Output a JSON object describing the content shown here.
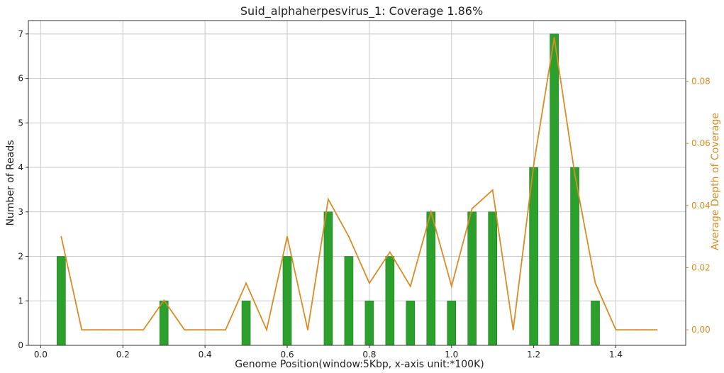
{
  "chart_data": {
    "type": "bar",
    "title": "Suid_alphaherpesvirus_1: Coverage 1.86%",
    "xlabel": "Genome Position(window:5Kbp, x-axis unit:*100K)",
    "ylabel": "Number of Reads",
    "y2label": "Average Depth of Coverage",
    "xlim": [
      -0.03,
      1.57
    ],
    "ylim": [
      0,
      7.3
    ],
    "y2lim": [
      -0.005,
      0.0995
    ],
    "x_ticks": [
      "0.0",
      "0.2",
      "0.4",
      "0.6",
      "0.8",
      "1.0",
      "1.2",
      "1.4"
    ],
    "y_ticks": [
      "0",
      "1",
      "2",
      "3",
      "4",
      "5",
      "6",
      "7"
    ],
    "y2_ticks": [
      "0.00",
      "0.02",
      "0.04",
      "0.06",
      "0.08"
    ],
    "grid": true,
    "bars": {
      "name": "Number of Reads",
      "color": "#2ca02c",
      "x": [
        0.05,
        0.3,
        0.5,
        0.6,
        0.7,
        0.75,
        0.8,
        0.85,
        0.9,
        0.95,
        1.0,
        1.05,
        1.1,
        1.2,
        1.25,
        1.3,
        1.35
      ],
      "values": [
        2,
        1,
        1,
        2,
        3,
        2,
        1,
        2,
        1,
        3,
        1,
        3,
        3,
        4,
        7,
        4,
        1
      ]
    },
    "line": {
      "name": "Average Depth of Coverage",
      "color": "#d98c24",
      "x": [
        0.05,
        0.1,
        0.15,
        0.2,
        0.25,
        0.3,
        0.35,
        0.4,
        0.45,
        0.5,
        0.55,
        0.6,
        0.65,
        0.7,
        0.75,
        0.8,
        0.85,
        0.9,
        0.95,
        1.0,
        1.05,
        1.1,
        1.15,
        1.2,
        1.25,
        1.3,
        1.35,
        1.4,
        1.45,
        1.5
      ],
      "values": [
        0.03,
        0.0,
        0.0,
        0.0,
        0.0,
        0.0095,
        0.0,
        0.0,
        0.0,
        0.015,
        0.0,
        0.03,
        0.0,
        0.042,
        0.03,
        0.015,
        0.025,
        0.014,
        0.038,
        0.014,
        0.039,
        0.045,
        0.0,
        0.053,
        0.094,
        0.05,
        0.015,
        0.0,
        0.0,
        0.0
      ]
    },
    "colors": {
      "bar_fill": "#2ca02c",
      "bar_edge": "#1e7a1e",
      "line": "#d98c24",
      "y2_text": "#d98c24",
      "grid": "#c9c9c9",
      "axis": "#333333"
    }
  }
}
